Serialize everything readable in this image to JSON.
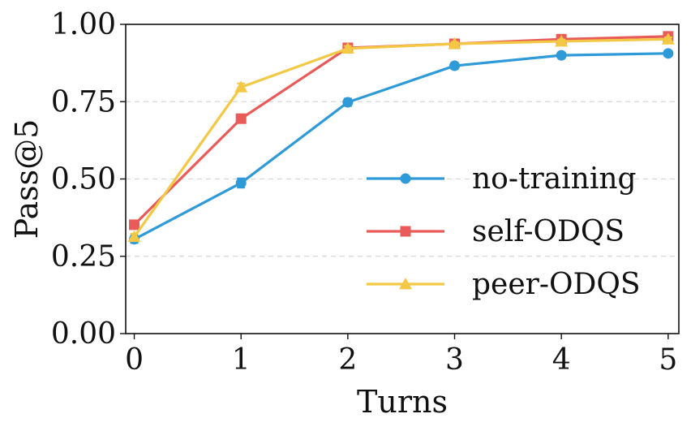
{
  "chart_data": {
    "type": "line",
    "title": "",
    "xlabel": "Turns",
    "ylabel": "Pass@5",
    "x": [
      0,
      1,
      2,
      3,
      4,
      5
    ],
    "xticks": [
      "0",
      "1",
      "2",
      "3",
      "4",
      "5"
    ],
    "yticks": [
      "0.00",
      "0.25",
      "0.50",
      "0.75",
      "1.00"
    ],
    "xlim": [
      -0.08,
      5.1
    ],
    "ylim": [
      0,
      1
    ],
    "grid": "horizontal dashed",
    "legend_position": "lower-right",
    "series": [
      {
        "name": "no-training",
        "marker": "circle",
        "color": "#2e9ad8",
        "values": [
          0.305,
          0.487,
          0.748,
          0.866,
          0.9,
          0.906
        ],
        "errors": [
          0.012,
          0.015,
          0.012,
          0.01,
          0.008,
          0.008
        ]
      },
      {
        "name": "self-ODQS",
        "marker": "square",
        "color": "#e85b58",
        "values": [
          0.352,
          0.695,
          0.924,
          0.937,
          0.952,
          0.961
        ],
        "errors": [
          0.01,
          0.01,
          0.008,
          0.006,
          0.006,
          0.006
        ]
      },
      {
        "name": "peer-ODQS",
        "marker": "triangle",
        "color": "#f2c844",
        "values": [
          0.313,
          0.797,
          0.922,
          0.937,
          0.945,
          0.952
        ],
        "errors": [
          0.01,
          0.012,
          0.008,
          0.006,
          0.006,
          0.006
        ]
      }
    ]
  }
}
